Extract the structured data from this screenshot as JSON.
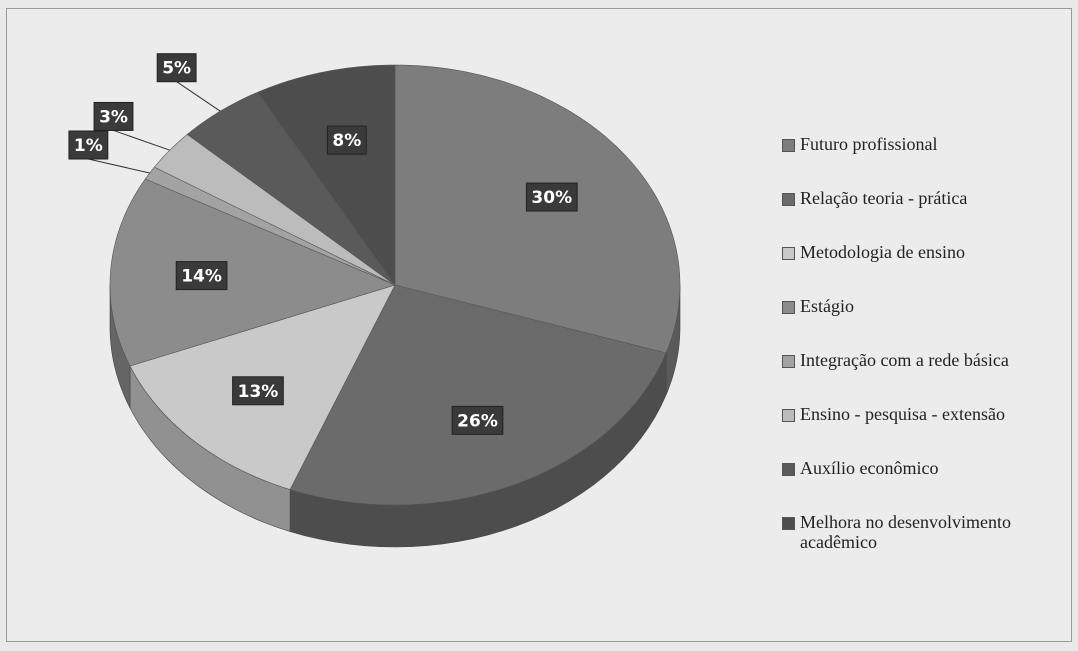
{
  "chart_data": {
    "type": "pie",
    "categories": [
      "Futuro profissional",
      "Relação teoria - prática",
      "Metodologia de ensino",
      "Estágio",
      "Integração com a rede básica",
      "Ensino - pesquisa - extensão",
      "Auxílio econômico",
      "Melhora no desenvolvimento acadêmico"
    ],
    "values": [
      30,
      26,
      13,
      14,
      1,
      3,
      5,
      8
    ],
    "value_labels": [
      "30%",
      "26%",
      "13%",
      "14%",
      "1%",
      "3%",
      "5%",
      "8%"
    ],
    "colors": [
      "#7d7d7d",
      "#6b6b6b",
      "#c9c9c9",
      "#8c8c8c",
      "#a3a3a3",
      "#bcbcbc",
      "#5a5a5a",
      "#4d4d4d"
    ],
    "legend": "right"
  }
}
